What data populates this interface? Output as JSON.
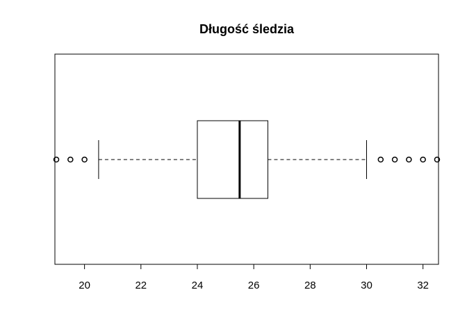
{
  "chart_data": {
    "type": "boxplot",
    "orientation": "horizontal",
    "title": "Długość śledzia",
    "xlabel": "",
    "ylabel": "",
    "xlim": [
      18.95,
      32.55
    ],
    "ticks": [
      20,
      22,
      24,
      26,
      28,
      30,
      32
    ],
    "tick_labels": [
      "20",
      "22",
      "24",
      "26",
      "28",
      "30",
      "32"
    ],
    "box": {
      "whisker_low": 20.5,
      "q1": 24.0,
      "median": 25.5,
      "q3": 26.5,
      "whisker_high": 30.0
    },
    "outliers": [
      19.0,
      19.5,
      20.0,
      30.5,
      31.0,
      31.5,
      32.0,
      32.5
    ],
    "grid": false,
    "legend": "none",
    "colors": {
      "stroke": "#000000",
      "background": "#ffffff"
    }
  }
}
